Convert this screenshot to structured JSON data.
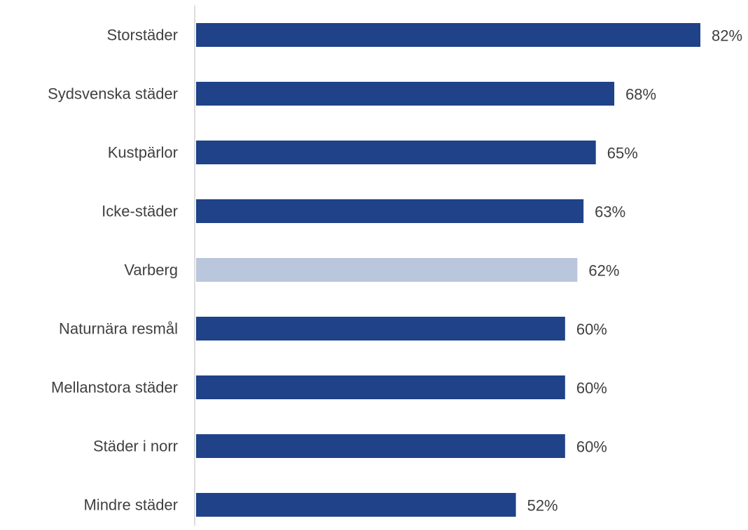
{
  "chart_data": {
    "type": "bar",
    "orientation": "horizontal",
    "categories": [
      "Storstäder",
      "Sydsvenska städer",
      "Kustpärlor",
      "Icke-städer",
      "Varberg",
      "Naturnära resmål",
      "Mellanstora städer",
      "Städer i norr",
      "Mindre städer"
    ],
    "values": [
      82,
      68,
      65,
      63,
      62,
      60,
      60,
      60,
      52
    ],
    "value_labels": [
      "82%",
      "68%",
      "65%",
      "63%",
      "62%",
      "60%",
      "60%",
      "60%",
      "52%"
    ],
    "highlight_category": "Varberg",
    "xlim": [
      0,
      100
    ],
    "grid": false,
    "colors": {
      "bar": "#1f4289",
      "highlight": "#b9c6dc",
      "axis": "#d0d0d0",
      "text": "#404040"
    }
  }
}
